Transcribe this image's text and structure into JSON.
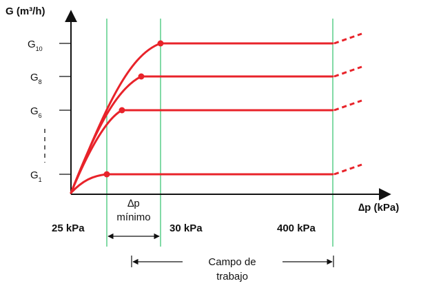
{
  "axes": {
    "y_label": "G (m³/h)",
    "x_label": "∆p (kPa)"
  },
  "curves": [
    {
      "label_main": "G",
      "label_sub": "10"
    },
    {
      "label_main": "G",
      "label_sub": "8"
    },
    {
      "label_main": "G",
      "label_sub": "6"
    },
    {
      "label_main": "G",
      "label_sub": "1"
    }
  ],
  "pressure_marks": {
    "min": "25 kPa",
    "knee": "30 kPa",
    "max": "400 kPa"
  },
  "delta_p_min": {
    "line1": "∆p",
    "line2": "mínimo"
  },
  "working_range": {
    "line1": "Campo de",
    "line2": "trabajo"
  },
  "colors": {
    "curve": "#e8232a",
    "marker_line": "#2fc26b",
    "axis": "#111111"
  }
}
